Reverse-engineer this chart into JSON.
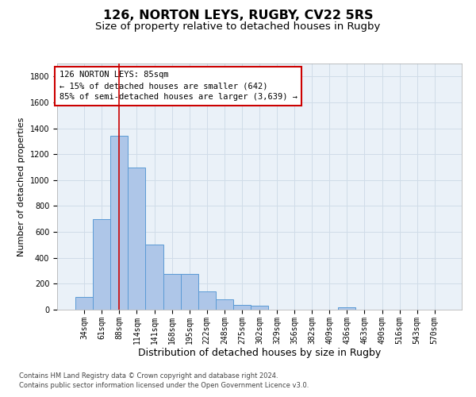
{
  "title": "126, NORTON LEYS, RUGBY, CV22 5RS",
  "subtitle": "Size of property relative to detached houses in Rugby",
  "xlabel": "Distribution of detached houses by size in Rugby",
  "ylabel": "Number of detached properties",
  "footnote1": "Contains HM Land Registry data © Crown copyright and database right 2024.",
  "footnote2": "Contains public sector information licensed under the Open Government Licence v3.0.",
  "annotation_line1": "126 NORTON LEYS: 85sqm",
  "annotation_line2": "← 15% of detached houses are smaller (642)",
  "annotation_line3": "85% of semi-detached houses are larger (3,639) →",
  "categories": [
    "34sqm",
    "61sqm",
    "88sqm",
    "114sqm",
    "141sqm",
    "168sqm",
    "195sqm",
    "222sqm",
    "248sqm",
    "275sqm",
    "302sqm",
    "329sqm",
    "356sqm",
    "382sqm",
    "409sqm",
    "436sqm",
    "463sqm",
    "490sqm",
    "516sqm",
    "543sqm",
    "570sqm"
  ],
  "values": [
    100,
    700,
    1340,
    1100,
    500,
    275,
    275,
    140,
    80,
    35,
    30,
    0,
    0,
    0,
    0,
    20,
    0,
    0,
    0,
    0,
    0
  ],
  "bar_color": "#aec6e8",
  "bar_edge_color": "#5b9bd5",
  "red_line_index": 2,
  "red_line_color": "#cc0000",
  "annotation_box_edge_color": "#cc0000",
  "annotation_box_face_color": "#ffffff",
  "ylim": [
    0,
    1900
  ],
  "yticks": [
    0,
    200,
    400,
    600,
    800,
    1000,
    1200,
    1400,
    1600,
    1800
  ],
  "grid_color": "#d0dce8",
  "background_color": "#eaf1f8",
  "title_fontsize": 11.5,
  "subtitle_fontsize": 9.5,
  "xlabel_fontsize": 9,
  "ylabel_fontsize": 8,
  "tick_fontsize": 7,
  "annotation_fontsize": 7.5,
  "footnote_fontsize": 6
}
